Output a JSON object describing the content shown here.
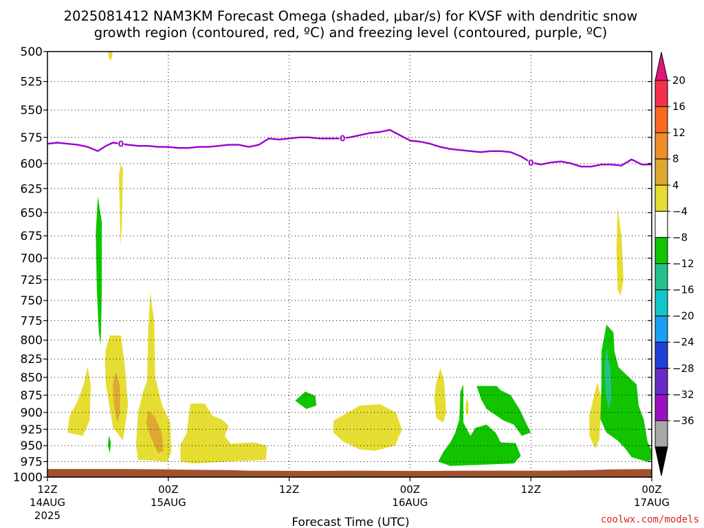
{
  "page": {
    "title_line1": "2025081412 NAM3KM Forecast Omega (shaded, μbar/s) for KVSF with dendritic snow",
    "title_line2": "growth region (contoured, red, ºC) and freezing level (contoured, purple, ºC)",
    "credit": "coolwx.com/models",
    "credit_color": "#dd2222"
  },
  "chart_data": {
    "type": "heatmap",
    "title": "2025081412 NAM3KM Forecast Omega (shaded, μbar/s) for KVSF with dendritic snow growth region (contoured, red, ºC) and freezing level (contoured, purple, ºC)",
    "xlabel": "Forecast Time (UTC)",
    "ylabel": "",
    "x_range_hours": [
      0,
      60
    ],
    "y_range_hpa": [
      500,
      1000
    ],
    "grid": true,
    "x_ticks": [
      {
        "hour": 0,
        "label": "12Z",
        "sub": "14AUG",
        "sub2": "2025"
      },
      {
        "hour": 12,
        "label": "00Z",
        "sub": "15AUG",
        "sub2": ""
      },
      {
        "hour": 24,
        "label": "12Z",
        "sub": "",
        "sub2": ""
      },
      {
        "hour": 36,
        "label": "00Z",
        "sub": "16AUG",
        "sub2": ""
      },
      {
        "hour": 48,
        "label": "12Z",
        "sub": "",
        "sub2": ""
      },
      {
        "hour": 60,
        "label": "00Z",
        "sub": "17AUG",
        "sub2": ""
      }
    ],
    "y_levels": [
      500,
      525,
      550,
      575,
      600,
      625,
      650,
      675,
      700,
      725,
      750,
      775,
      800,
      825,
      850,
      875,
      900,
      925,
      950,
      975,
      1000
    ],
    "freezing_level": {
      "name": "0°C",
      "color": "#9900cc",
      "label": "0",
      "label_hours": [
        7.3,
        29.3,
        48.0
      ],
      "points": [
        [
          0,
          581
        ],
        [
          1,
          580
        ],
        [
          2,
          581
        ],
        [
          3,
          582
        ],
        [
          4,
          584
        ],
        [
          5,
          588
        ],
        [
          5.8,
          583
        ],
        [
          6.5,
          580
        ],
        [
          8,
          582
        ],
        [
          9,
          583
        ],
        [
          10,
          583
        ],
        [
          11,
          584
        ],
        [
          12,
          584
        ],
        [
          13,
          585
        ],
        [
          14,
          585
        ],
        [
          15,
          584
        ],
        [
          16,
          584
        ],
        [
          17,
          583
        ],
        [
          18,
          582
        ],
        [
          19,
          582
        ],
        [
          20,
          584
        ],
        [
          21,
          582
        ],
        [
          22,
          576
        ],
        [
          23,
          577
        ],
        [
          24,
          576
        ],
        [
          25,
          575
        ],
        [
          26,
          575
        ],
        [
          27,
          576
        ],
        [
          28,
          576
        ],
        [
          29,
          576
        ],
        [
          30,
          575
        ],
        [
          31,
          573
        ],
        [
          32,
          571
        ],
        [
          33,
          570
        ],
        [
          34,
          568
        ],
        [
          35,
          573
        ],
        [
          36,
          578
        ],
        [
          37,
          579
        ],
        [
          38,
          581
        ],
        [
          39,
          584
        ],
        [
          40,
          586
        ],
        [
          41,
          587
        ],
        [
          42,
          588
        ],
        [
          43,
          589
        ],
        [
          44,
          588
        ],
        [
          45,
          588
        ],
        [
          46,
          589
        ],
        [
          47,
          593
        ],
        [
          48,
          599
        ],
        [
          49,
          601
        ],
        [
          50,
          599
        ],
        [
          51,
          598
        ],
        [
          52,
          600
        ],
        [
          53,
          603
        ],
        [
          54,
          603
        ],
        [
          55,
          601
        ],
        [
          56,
          601
        ],
        [
          57,
          602
        ],
        [
          58,
          596
        ],
        [
          59,
          601
        ],
        [
          60,
          601
        ]
      ]
    },
    "terrain": {
      "name": "surface",
      "color": "#a0522d",
      "points": [
        [
          0,
          987
        ],
        [
          4,
          987
        ],
        [
          8,
          987
        ],
        [
          12,
          987.5
        ],
        [
          14,
          988
        ],
        [
          18,
          988.5
        ],
        [
          20,
          989.5
        ],
        [
          26,
          990
        ],
        [
          30,
          989.5
        ],
        [
          38,
          990
        ],
        [
          42,
          989.5
        ],
        [
          46,
          989.5
        ],
        [
          50,
          989.5
        ],
        [
          54,
          988.5
        ],
        [
          56,
          987.5
        ],
        [
          60,
          987
        ]
      ]
    },
    "omega_regions": [
      {
        "class": "up_4_8",
        "color": "#e6dd33",
        "points": [
          [
            6.0,
            500
          ],
          [
            6.5,
            500
          ],
          [
            6.3,
            508
          ],
          [
            6.1,
            505
          ]
        ]
      },
      {
        "class": "up_4_8",
        "color": "#e6dd33",
        "points": [
          [
            7.3,
            600
          ],
          [
            7.5,
            606
          ],
          [
            7.4,
            660
          ],
          [
            7.3,
            688
          ],
          [
            7.2,
            660
          ],
          [
            7.1,
            612
          ]
        ]
      },
      {
        "class": "up_4_8",
        "color": "#e6dd33",
        "points": [
          [
            3.6,
            860
          ],
          [
            4.0,
            835
          ],
          [
            4.3,
            862
          ],
          [
            4.2,
            912
          ],
          [
            3.5,
            935
          ],
          [
            2.0,
            930
          ],
          [
            2.2,
            905
          ],
          [
            3.0,
            883
          ]
        ]
      },
      {
        "class": "up_4_8",
        "color": "#e6dd33",
        "points": [
          [
            6.2,
            794
          ],
          [
            7.3,
            794
          ],
          [
            7.7,
            836
          ],
          [
            8.0,
            890
          ],
          [
            7.5,
            942
          ],
          [
            6.5,
            922
          ],
          [
            5.8,
            860
          ],
          [
            5.7,
            830
          ],
          [
            5.8,
            812
          ]
        ]
      },
      {
        "class": "up_8_12",
        "color": "#dea930",
        "points": [
          [
            6.8,
            842
          ],
          [
            7.2,
            862
          ],
          [
            7.2,
            902
          ],
          [
            6.9,
            915
          ],
          [
            6.6,
            886
          ],
          [
            6.5,
            860
          ]
        ]
      },
      {
        "class": "up_4_8",
        "color": "#e6dd33",
        "points": [
          [
            10.2,
            740
          ],
          [
            10.6,
            775
          ],
          [
            10.7,
            850
          ],
          [
            11.4,
            890
          ],
          [
            12.2,
            915
          ],
          [
            12.3,
            960
          ],
          [
            11.9,
            975
          ],
          [
            9.0,
            972
          ],
          [
            8.8,
            950
          ],
          [
            9.0,
            900
          ],
          [
            9.5,
            870
          ],
          [
            9.9,
            855
          ],
          [
            10.0,
            790
          ]
        ]
      },
      {
        "class": "up_8_12",
        "color": "#dea930",
        "points": [
          [
            10.0,
            897
          ],
          [
            10.7,
            907
          ],
          [
            11.4,
            933
          ],
          [
            11.5,
            958
          ],
          [
            11.0,
            962
          ],
          [
            10.2,
            935
          ],
          [
            9.8,
            917
          ]
        ]
      },
      {
        "class": "up_4_8",
        "color": "#e6dd33",
        "points": [
          [
            14.2,
            887
          ],
          [
            15.6,
            887
          ],
          [
            16.4,
            905
          ],
          [
            17.3,
            910
          ],
          [
            18.0,
            920
          ],
          [
            17.6,
            935
          ],
          [
            18.2,
            947
          ],
          [
            20.5,
            945
          ],
          [
            21.8,
            950
          ],
          [
            21.7,
            972
          ],
          [
            14.5,
            978
          ],
          [
            13.2,
            975
          ],
          [
            13.2,
            948
          ],
          [
            13.8,
            932
          ]
        ]
      },
      {
        "class": "up_4_8",
        "color": "#e6dd33",
        "points": [
          [
            29.6,
            902
          ],
          [
            31.0,
            890
          ],
          [
            33.0,
            888
          ],
          [
            34.6,
            900
          ],
          [
            35.2,
            926
          ],
          [
            34.5,
            950
          ],
          [
            32.5,
            958
          ],
          [
            31.0,
            956
          ],
          [
            29.3,
            943
          ],
          [
            28.4,
            930
          ],
          [
            28.4,
            912
          ]
        ]
      },
      {
        "class": "up_4_8",
        "color": "#e6dd33",
        "points": [
          [
            39.0,
            837
          ],
          [
            39.4,
            856
          ],
          [
            39.6,
            900
          ],
          [
            39.3,
            915
          ],
          [
            38.6,
            908
          ],
          [
            38.4,
            878
          ],
          [
            38.6,
            858
          ]
        ]
      },
      {
        "class": "up_4_8",
        "color": "#e6dd33",
        "points": [
          [
            41.6,
            880
          ],
          [
            41.8,
            886
          ],
          [
            41.8,
            900
          ],
          [
            41.6,
            905
          ],
          [
            41.5,
            895
          ]
        ]
      },
      {
        "class": "up_4_8",
        "color": "#e6dd33",
        "points": [
          [
            54.6,
            857
          ],
          [
            55.0,
            880
          ],
          [
            54.8,
            940
          ],
          [
            54.4,
            955
          ],
          [
            53.8,
            935
          ],
          [
            53.8,
            905
          ],
          [
            54.2,
            880
          ]
        ]
      },
      {
        "class": "up_4_8",
        "color": "#e6dd33",
        "points": [
          [
            56.6,
            645
          ],
          [
            57.0,
            675
          ],
          [
            57.2,
            725
          ],
          [
            56.9,
            745
          ],
          [
            56.6,
            735
          ],
          [
            56.5,
            690
          ]
        ]
      },
      {
        "class": "down_4_8",
        "color": "#11c400",
        "points": [
          [
            5.0,
            633
          ],
          [
            5.4,
            660
          ],
          [
            5.4,
            740
          ],
          [
            5.3,
            805
          ],
          [
            5.1,
            790
          ],
          [
            4.9,
            735
          ],
          [
            4.8,
            672
          ]
        ]
      },
      {
        "class": "down_4_8",
        "color": "#11c400",
        "points": [
          [
            6.1,
            935
          ],
          [
            6.3,
            945
          ],
          [
            6.2,
            962
          ],
          [
            6.0,
            950
          ]
        ]
      },
      {
        "class": "down_4_8",
        "color": "#11c400",
        "points": [
          [
            25.6,
            870
          ],
          [
            26.6,
            876
          ],
          [
            26.7,
            890
          ],
          [
            25.7,
            895
          ],
          [
            24.6,
            883
          ]
        ]
      },
      {
        "class": "down_4_8",
        "color": "#11c400",
        "points": [
          [
            39.3,
            960
          ],
          [
            40.0,
            945
          ],
          [
            40.5,
            930
          ],
          [
            40.9,
            910
          ],
          [
            41.0,
            870
          ],
          [
            41.3,
            860
          ],
          [
            41.3,
            915
          ],
          [
            42.0,
            935
          ],
          [
            42.5,
            923
          ],
          [
            43.6,
            918
          ],
          [
            44.5,
            930
          ],
          [
            45.0,
            945
          ],
          [
            46.5,
            946
          ],
          [
            47.0,
            966
          ],
          [
            46.3,
            978
          ],
          [
            40.0,
            982
          ],
          [
            38.8,
            975
          ]
        ]
      },
      {
        "class": "down_4_8",
        "color": "#11c400",
        "points": [
          [
            42.6,
            862
          ],
          [
            44.6,
            862
          ],
          [
            45.0,
            868
          ],
          [
            46.0,
            875
          ],
          [
            46.9,
            896
          ],
          [
            47.5,
            915
          ],
          [
            48.0,
            930
          ],
          [
            47.1,
            935
          ],
          [
            46.3,
            918
          ],
          [
            45.3,
            912
          ],
          [
            43.6,
            895
          ],
          [
            43.1,
            882
          ]
        ]
      },
      {
        "class": "down_4_8",
        "color": "#11c400",
        "points": [
          [
            55.5,
            780
          ],
          [
            56.2,
            790
          ],
          [
            56.3,
            815
          ],
          [
            56.7,
            836
          ],
          [
            57.6,
            848
          ],
          [
            58.5,
            860
          ],
          [
            58.7,
            890
          ],
          [
            59.2,
            910
          ],
          [
            59.6,
            945
          ],
          [
            60,
            958
          ],
          [
            60,
            972
          ],
          [
            59.5,
            975
          ],
          [
            58.0,
            968
          ],
          [
            57.4,
            955
          ],
          [
            56.6,
            942
          ],
          [
            55.5,
            930
          ],
          [
            54.9,
            910
          ],
          [
            55.0,
            862
          ],
          [
            55.0,
            815
          ]
        ]
      },
      {
        "class": "down_8_12",
        "color": "#22c28a",
        "points": [
          [
            55.5,
            810
          ],
          [
            55.9,
            838
          ],
          [
            56.0,
            880
          ],
          [
            55.7,
            895
          ],
          [
            55.4,
            870
          ],
          [
            55.3,
            838
          ]
        ]
      }
    ],
    "colorbar": {
      "ticks": [
        "20",
        "16",
        "12",
        "8",
        "4",
        "−4",
        "−8",
        "−12",
        "−16",
        "−20",
        "−24",
        "−28",
        "−32",
        "−36"
      ],
      "top_color": "#e0157a",
      "bottom_color": "#000000",
      "colors": [
        "#f6304a",
        "#f76a20",
        "#ee8e2a",
        "#dea930",
        "#e6dd33",
        "#ffffff",
        "#11c400",
        "#22c28a",
        "#10c8c8",
        "#1aa0f0",
        "#2040d8",
        "#6a2ac8",
        "#9a10c0",
        "#a8a8a8"
      ]
    }
  }
}
